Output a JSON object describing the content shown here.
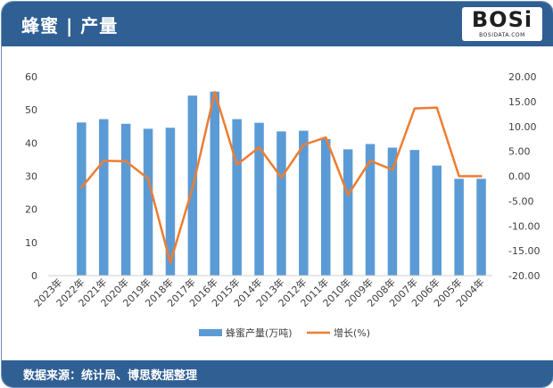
{
  "header": {
    "title": "蜂蜜 | 产量"
  },
  "logo": {
    "main": "BOSi",
    "sub": "BOSIDATA.COM"
  },
  "footer": {
    "source": "数据来源：统计局、博思数据整理"
  },
  "colors": {
    "header_bg": "#2f5f93",
    "bar": "#5b9bd5",
    "line": "#ed7d31"
  },
  "chart_data": {
    "type": "bar+line",
    "categories": [
      "2023年",
      "2022年",
      "2021年",
      "2020年",
      "2019年",
      "2018年",
      "2017年",
      "2016年",
      "2015年",
      "2014年",
      "2013年",
      "2012年",
      "2011年",
      "2010年",
      "2009年",
      "2008年",
      "2007年",
      "2006年",
      "2005年",
      "2004年"
    ],
    "series": [
      {
        "name": "蜂蜜产量(万吨)",
        "type": "bar",
        "axis": "left",
        "values": [
          null,
          46.2,
          47.2,
          45.8,
          44.3,
          44.6,
          54.3,
          55.5,
          47.2,
          46.1,
          43.5,
          43.7,
          41.2,
          38.1,
          39.7,
          38.6,
          37.9,
          33.2,
          29.2,
          29.2
        ]
      },
      {
        "name": "增长(%)",
        "type": "line",
        "axis": "right",
        "values": [
          null,
          -2.3,
          3.1,
          3.0,
          -0.5,
          -17.4,
          -2.4,
          16.9,
          2.3,
          5.8,
          -0.3,
          6.3,
          7.8,
          -3.8,
          3.1,
          1.3,
          13.6,
          13.8,
          0.0,
          0.0
        ]
      }
    ],
    "y_left": {
      "min": 0,
      "max": 60,
      "step": 10,
      "ticks": [
        "0",
        "10",
        "20",
        "30",
        "40",
        "50",
        "60"
      ]
    },
    "y_right": {
      "min": -20,
      "max": 20,
      "step": 5,
      "ticks": [
        "-20.00",
        "-15.00",
        "-10.00",
        "-5.00",
        "0.00",
        "5.00",
        "10.00",
        "15.00",
        "20.00"
      ]
    },
    "grid": false,
    "legend": "bottom"
  }
}
